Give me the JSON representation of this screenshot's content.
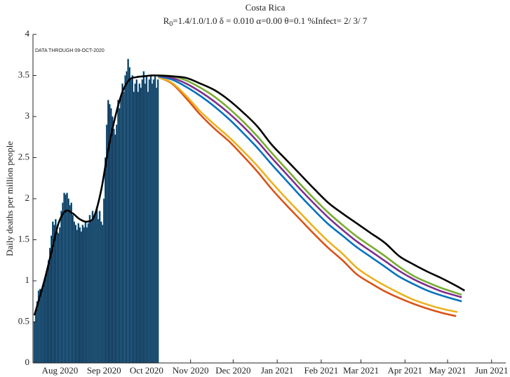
{
  "chart_data": {
    "type": "bar_line",
    "title": "Costa Rica",
    "subtitle": [
      "R",
      "0",
      "=1.4/1.0/1.0  δ = 0.010  α=0.00  θ=0.1  %Infect= 2/ 3/ 7"
    ],
    "annotation": "DATA THROUGH 09-OCT-2020",
    "ylabel": "Daily deaths per million people",
    "xlim": [
      12,
      345
    ],
    "xticks": [
      {
        "value": 31,
        "label": "Aug 2020"
      },
      {
        "value": 62,
        "label": "Sep 2020"
      },
      {
        "value": 92,
        "label": "Oct 2020"
      },
      {
        "value": 123,
        "label": "Nov 2020"
      },
      {
        "value": 153,
        "label": "Dec 2020"
      },
      {
        "value": 184,
        "label": "Jan 2021"
      },
      {
        "value": 215,
        "label": "Feb 2021"
      },
      {
        "value": 243,
        "label": "Mar 2021"
      },
      {
        "value": 274,
        "label": "Apr 2021"
      },
      {
        "value": 304,
        "label": "May 2021"
      },
      {
        "value": 335,
        "label": "Jun 2021"
      }
    ],
    "ylim": [
      0,
      4
    ],
    "yticks": [
      0,
      0.5,
      1,
      1.5,
      2,
      2.5,
      3,
      3.5,
      4
    ],
    "series": [
      {
        "type": "bar",
        "color": "#0d2240",
        "edge": "#3a9cc8",
        "x": [
          13,
          14,
          15,
          16,
          17,
          18,
          19,
          20,
          21,
          22,
          23,
          24,
          25,
          26,
          27,
          28,
          29,
          30,
          31,
          32,
          33,
          34,
          35,
          36,
          37,
          38,
          39,
          40,
          41,
          42,
          43,
          44,
          45,
          46,
          47,
          48,
          49,
          50,
          51,
          52,
          53,
          54,
          55,
          56,
          57,
          58,
          59,
          60,
          61,
          62,
          63,
          64,
          65,
          66,
          67,
          68,
          69,
          70,
          71,
          72,
          73,
          74,
          75,
          76,
          77,
          78,
          79,
          80,
          81,
          82,
          83,
          84,
          85,
          86,
          87,
          88,
          89,
          90,
          91,
          92,
          93,
          94,
          95,
          96,
          97,
          98,
          99,
          100
        ],
        "values": [
          0.5,
          0.62,
          0.75,
          0.88,
          0.9,
          0.87,
          0.92,
          1.0,
          1.05,
          1.15,
          1.25,
          1.4,
          1.55,
          1.72,
          1.68,
          1.75,
          1.6,
          1.58,
          1.65,
          1.85,
          1.95,
          2.07,
          2.05,
          2.07,
          2.0,
          1.92,
          1.95,
          1.8,
          1.72,
          1.68,
          1.62,
          1.7,
          1.65,
          1.6,
          1.68,
          1.65,
          1.72,
          1.65,
          1.7,
          1.8,
          1.72,
          1.85,
          1.78,
          1.82,
          1.9,
          1.75,
          1.85,
          1.72,
          1.68,
          2.0,
          2.5,
          2.9,
          3.2,
          3.15,
          3.1,
          3.0,
          2.85,
          2.78,
          2.9,
          3.2,
          3.1,
          3.25,
          3.4,
          3.3,
          3.5,
          3.55,
          3.7,
          3.6,
          3.45,
          3.5,
          3.3,
          3.4,
          3.45,
          3.3,
          3.4,
          3.35,
          3.45,
          3.55,
          3.4,
          3.5,
          3.3,
          3.45,
          3.5,
          3.4,
          3.45,
          3.5,
          3.35,
          3.45
        ]
      },
      {
        "type": "line",
        "color": "#d95319",
        "x": [
          100,
          110,
          120,
          130,
          140,
          150,
          160,
          170,
          180,
          190,
          200,
          210,
          220,
          230,
          240,
          250,
          260,
          270,
          280,
          290,
          300,
          310
        ],
        "values": [
          3.48,
          3.4,
          3.22,
          3.02,
          2.85,
          2.7,
          2.52,
          2.33,
          2.12,
          1.93,
          1.75,
          1.57,
          1.4,
          1.25,
          1.08,
          0.97,
          0.87,
          0.79,
          0.72,
          0.66,
          0.61,
          0.57
        ]
      },
      {
        "type": "line",
        "color": "#edb120",
        "x": [
          100,
          110,
          120,
          130,
          140,
          150,
          160,
          170,
          180,
          190,
          200,
          210,
          220,
          230,
          240,
          250,
          260,
          270,
          280,
          290,
          300,
          311
        ],
        "values": [
          3.48,
          3.41,
          3.25,
          3.06,
          2.9,
          2.75,
          2.58,
          2.4,
          2.2,
          2.01,
          1.83,
          1.65,
          1.48,
          1.33,
          1.16,
          1.04,
          0.94,
          0.85,
          0.77,
          0.71,
          0.66,
          0.62
        ]
      },
      {
        "type": "line",
        "color": "#0072bd",
        "x": [
          100,
          110,
          120,
          130,
          140,
          150,
          160,
          170,
          180,
          190,
          200,
          210,
          220,
          230,
          240,
          250,
          260,
          270,
          280,
          290,
          300,
          314
        ],
        "values": [
          3.49,
          3.45,
          3.36,
          3.25,
          3.12,
          2.97,
          2.8,
          2.62,
          2.42,
          2.23,
          2.04,
          1.86,
          1.69,
          1.55,
          1.41,
          1.29,
          1.17,
          1.05,
          0.96,
          0.88,
          0.82,
          0.75
        ]
      },
      {
        "type": "line",
        "color": "#7e2f8e",
        "x": [
          100,
          110,
          120,
          130,
          140,
          150,
          160,
          170,
          180,
          190,
          200,
          210,
          220,
          230,
          240,
          250,
          260,
          270,
          280,
          290,
          300,
          314
        ],
        "values": [
          3.5,
          3.47,
          3.4,
          3.3,
          3.18,
          3.04,
          2.88,
          2.7,
          2.5,
          2.31,
          2.12,
          1.94,
          1.77,
          1.62,
          1.48,
          1.36,
          1.24,
          1.12,
          1.02,
          0.94,
          0.87,
          0.8
        ]
      },
      {
        "type": "line",
        "color": "#77ac30",
        "x": [
          100,
          110,
          120,
          130,
          140,
          150,
          160,
          170,
          180,
          190,
          200,
          210,
          220,
          230,
          240,
          250,
          260,
          270,
          280,
          290,
          300,
          314
        ],
        "values": [
          3.5,
          3.49,
          3.44,
          3.35,
          3.24,
          3.1,
          2.94,
          2.76,
          2.56,
          2.37,
          2.18,
          2.0,
          1.83,
          1.68,
          1.54,
          1.42,
          1.3,
          1.17,
          1.06,
          0.98,
          0.91,
          0.83
        ]
      },
      {
        "type": "line",
        "color": "#000000",
        "x": [
          13,
          20,
          25,
          30,
          35,
          40,
          45,
          50,
          55,
          60,
          65,
          70,
          75,
          80,
          85,
          90,
          95,
          100,
          110,
          120,
          130,
          140,
          150,
          160,
          170,
          180,
          190,
          200,
          210,
          220,
          230,
          240,
          250,
          260,
          270,
          280,
          290,
          300,
          310,
          316
        ],
        "values": [
          0.58,
          1.0,
          1.35,
          1.7,
          1.85,
          1.82,
          1.75,
          1.72,
          1.78,
          2.1,
          2.6,
          3.0,
          3.3,
          3.45,
          3.48,
          3.49,
          3.5,
          3.5,
          3.49,
          3.47,
          3.4,
          3.32,
          3.2,
          3.05,
          2.88,
          2.66,
          2.48,
          2.3,
          2.12,
          1.95,
          1.82,
          1.7,
          1.58,
          1.46,
          1.3,
          1.2,
          1.11,
          1.03,
          0.94,
          0.88
        ]
      }
    ]
  }
}
